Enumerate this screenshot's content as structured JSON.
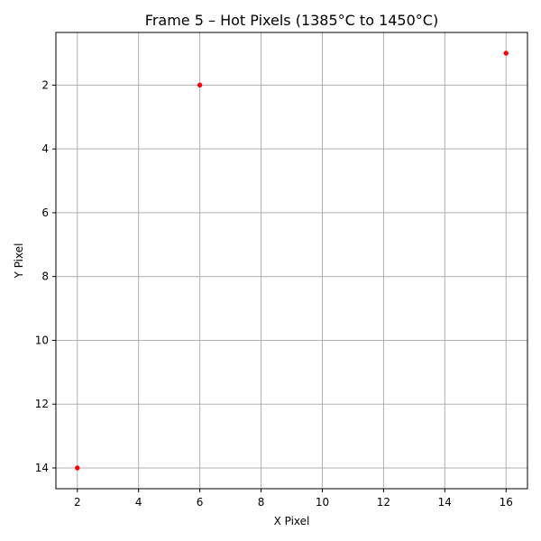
{
  "chart_data": {
    "type": "scatter",
    "title": "Frame 5 – Hot Pixels (1385°C to 1450°C)",
    "xlabel": "X Pixel",
    "ylabel": "Y Pixel",
    "xlim": [
      1.3,
      16.7
    ],
    "ylim": [
      14.65,
      0.35
    ],
    "y_inverted": true,
    "grid": true,
    "x_ticks": [
      2,
      4,
      6,
      8,
      10,
      12,
      14,
      16
    ],
    "y_ticks": [
      2,
      4,
      6,
      8,
      10,
      12,
      14
    ],
    "points": [
      {
        "x": 16,
        "y": 1
      },
      {
        "x": 6,
        "y": 2
      },
      {
        "x": 2,
        "y": 14
      }
    ],
    "point_color": "#ff0000",
    "point_edge_color": "#ff0000",
    "grid_color": "#b0b0b0"
  }
}
